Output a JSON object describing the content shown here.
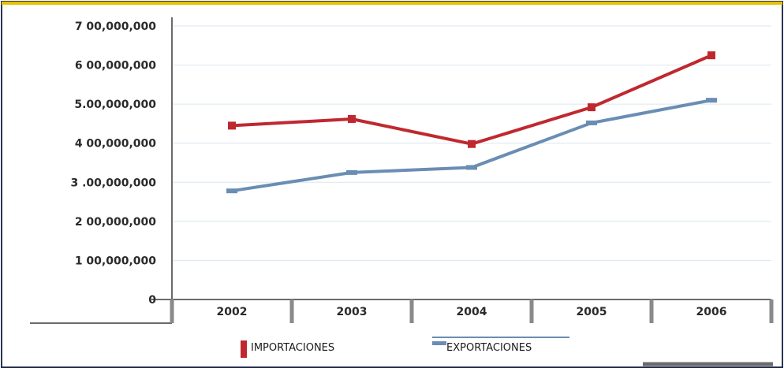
{
  "chart_data": {
    "type": "line",
    "categories": [
      "2002",
      "2003",
      "2004",
      "2005",
      "2006"
    ],
    "y_tick_labels": [
      "0",
      "1 00,000,000",
      "2 00,000,000",
      "3 .00,000,000",
      "4 00,000,000",
      "5.00,000,000",
      "6 00,000,000",
      "7 00,000,000"
    ],
    "ylim": [
      0,
      700000000
    ],
    "grid": "horizontal",
    "legend_position": "bottom",
    "series": [
      {
        "name": "IMPORTACIONES",
        "color": "#c0282f",
        "values": [
          445000000,
          462000000,
          398000000,
          492000000,
          625000000
        ]
      },
      {
        "name": "EXPORTACIONES",
        "color": "#6a8db3",
        "values": [
          278000000,
          325000000,
          338000000,
          452000000,
          510000000
        ]
      }
    ]
  }
}
